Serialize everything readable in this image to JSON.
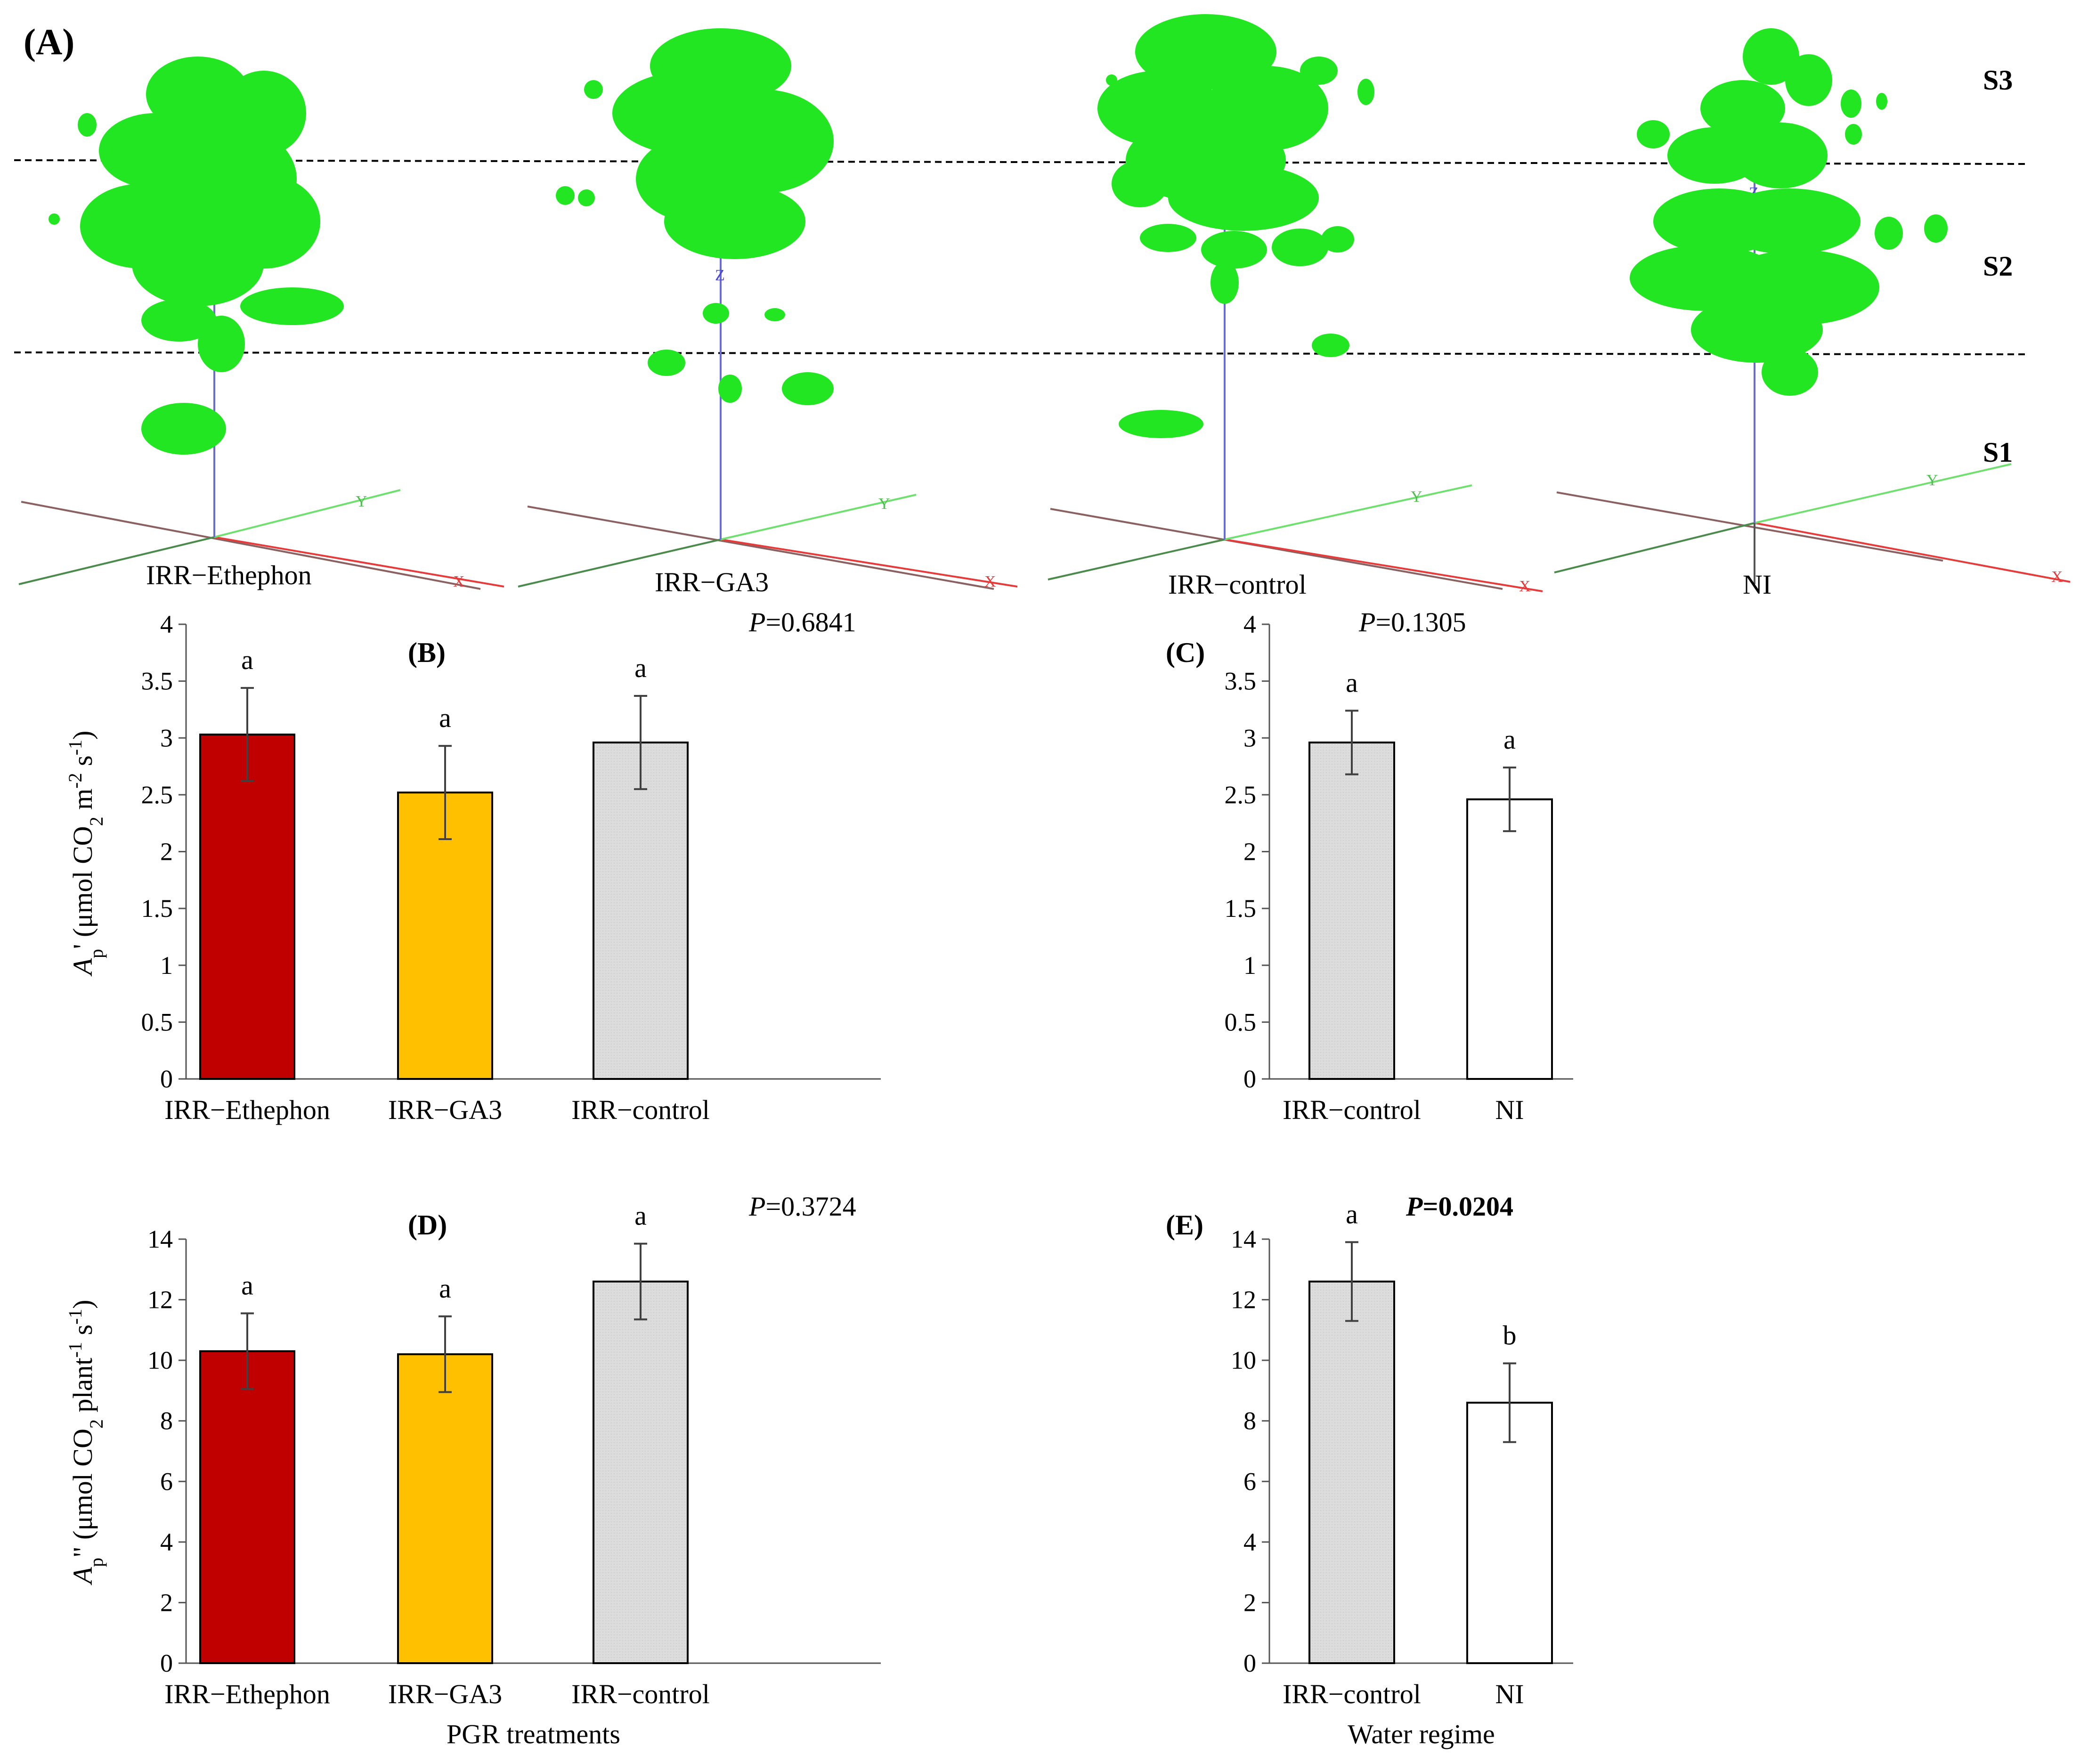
{
  "figure": {
    "panel_a_label": "(A)",
    "strata": [
      "S3",
      "S2",
      "S1"
    ],
    "axis_markers": {
      "x": "X",
      "y": "Y",
      "z": "Z"
    },
    "plants": [
      "IRR−Ethephon",
      "IRR−GA3",
      "IRR−control",
      "NI"
    ]
  },
  "colors": {
    "IRR−Ethephon": "#c00000",
    "IRR−GA3": "#ffc000",
    "IRR−control": "#dcdcdc",
    "NI": "#ffffff",
    "foliage": "#22e622"
  },
  "chart_data": [
    {
      "id": "B",
      "panel": "(B)",
      "type": "bar",
      "p_prefix": "P",
      "p_value": "=0.6841",
      "p_bold": false,
      "categories": [
        "IRR−Ethephon",
        "IRR−GA3",
        "IRR−control"
      ],
      "values": [
        3.03,
        2.52,
        2.96
      ],
      "errors": [
        0.41,
        0.41,
        0.41
      ],
      "letters": [
        "a",
        "a",
        "a"
      ],
      "ylim": [
        0,
        4
      ],
      "yticks": [
        "0",
        "0.5",
        "1",
        "1.5",
        "2",
        "2.5",
        "3",
        "3.5",
        "4"
      ],
      "ylabel_var": "A",
      "ylabel_sub": "p",
      "ylabel_prime": "'",
      "ylabel_units": [
        "(μmol CO",
        "2",
        " m",
        "-2",
        " s",
        "-1",
        ")"
      ],
      "xlabel": ""
    },
    {
      "id": "C",
      "panel": "(C)",
      "type": "bar",
      "p_prefix": "P",
      "p_value": "=0.1305",
      "p_bold": false,
      "categories": [
        "IRR−control",
        "NI"
      ],
      "values": [
        2.96,
        2.46
      ],
      "errors": [
        0.28,
        0.28
      ],
      "letters": [
        "a",
        "a"
      ],
      "ylim": [
        0,
        4
      ],
      "yticks": [
        "0",
        "0.5",
        "1",
        "1.5",
        "2",
        "2.5",
        "3",
        "3.5",
        "4"
      ],
      "xlabel": ""
    },
    {
      "id": "D",
      "panel": "(D)",
      "type": "bar",
      "p_prefix": "P",
      "p_value": "=0.3724",
      "p_bold": false,
      "categories": [
        "IRR−Ethephon",
        "IRR−GA3",
        "IRR−control"
      ],
      "values": [
        10.3,
        10.2,
        12.6
      ],
      "errors": [
        1.25,
        1.25,
        1.25
      ],
      "letters": [
        "a",
        "a",
        "a"
      ],
      "ylim": [
        0,
        14
      ],
      "yticks": [
        "0",
        "2",
        "4",
        "6",
        "8",
        "10",
        "12",
        "14"
      ],
      "ylabel_var": "A",
      "ylabel_sub": "p",
      "ylabel_prime": "\"",
      "ylabel_units": [
        "(μmol CO",
        "2",
        " plant",
        "-1",
        " s",
        "-1",
        ")"
      ],
      "xlabel": "PGR treatments"
    },
    {
      "id": "E",
      "panel": "(E)",
      "type": "bar",
      "p_prefix": "P",
      "p_value": "=0.0204",
      "p_bold": true,
      "categories": [
        "IRR−control",
        "NI"
      ],
      "values": [
        12.6,
        8.6
      ],
      "errors": [
        1.3,
        1.3
      ],
      "letters": [
        "a",
        "b"
      ],
      "ylim": [
        0,
        14
      ],
      "yticks": [
        "0",
        "2",
        "4",
        "6",
        "8",
        "10",
        "12",
        "14"
      ],
      "xlabel": "Water regime"
    }
  ]
}
